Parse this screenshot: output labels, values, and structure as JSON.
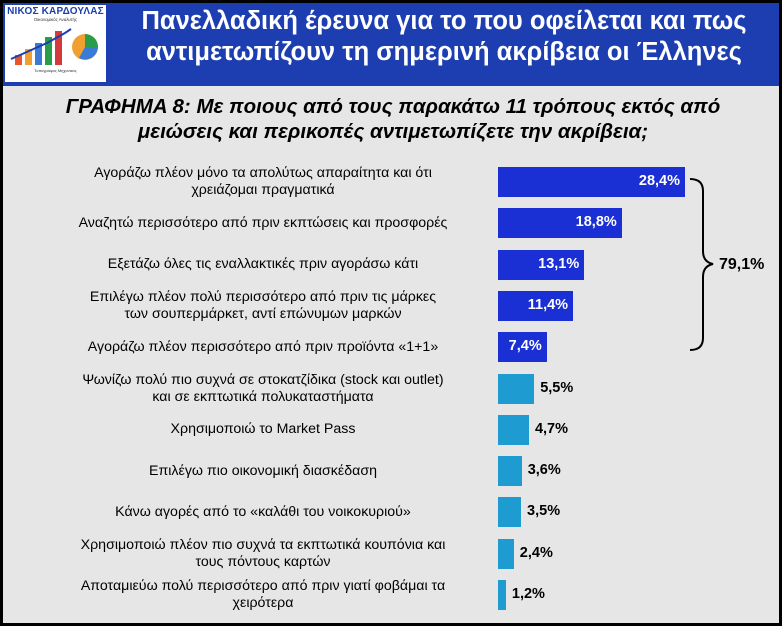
{
  "header": {
    "title_line1": "Πανελλαδική έρευνα για το που οφείλεται και πως",
    "title_line2": "αντιμετωπίζουν τη σημερινή ακρίβεια οι Έλληνες"
  },
  "logo": {
    "name": "ΝΙΚΟΣ ΚΑΡΔΟΥΛΑΣ",
    "sub": "Οικονομικός Αναλυτής",
    "foot": "Τοπογράφος Μηχανικός"
  },
  "colors": {
    "top5": "#1a2fd4",
    "rest": "#1e9bd0",
    "header": "#1c3eb0"
  },
  "chart_data": {
    "type": "bar",
    "orientation": "horizontal",
    "title_line1": "ΓΡΑΦΗΜΑ 8: Με ποιους από τους παρακάτω 11 τρόπους εκτός από",
    "title_line2": "μειώσεις και περικοπές αντιμετωπίζετε την ακρίβεια;",
    "categories": [
      [
        "Αγοράζω πλέον μόνο τα απολύτως απαραίτητα και ότι",
        "χρειάζομαι πραγματικά"
      ],
      [
        "Αναζητώ περισσότερο από πριν εκπτώσεις και προσφορές"
      ],
      [
        "Εξετάζω όλες τις εναλλακτικές πριν αγοράσω κάτι"
      ],
      [
        "Επιλέγω πλέον πολύ περισσότερο από πριν τις μάρκες",
        "των σουπερμάρκετ, αντί επώνυμων μαρκών"
      ],
      [
        "Αγοράζω πλέον περισσότερο από πριν προϊόντα «1+1»"
      ],
      [
        "Ψωνίζω πολύ πιο συχνά σε στοκατζίδικα (stock και outlet)",
        "και σε εκπτωτικά πολυκαταστήματα"
      ],
      [
        "Χρησιμοποιώ το Market Pass"
      ],
      [
        "Επιλέγω πιο οικονομική διασκέδαση"
      ],
      [
        "Κάνω αγορές από το «καλάθι του νοικοκυριού»"
      ],
      [
        "Χρησιμοποιώ πλέον πιο συχνά τα εκπτωτικά κουπόνια και",
        "τους πόντους καρτών"
      ],
      [
        "Αποταμιεύω πολύ περισσότερο από πριν γιατί φοβάμαι τα",
        "χειρότερα"
      ]
    ],
    "values": [
      28.4,
      18.8,
      13.1,
      11.4,
      7.4,
      5.5,
      4.7,
      3.6,
      3.5,
      2.4,
      1.2
    ],
    "value_labels": [
      "28,4%",
      "18,8%",
      "13,1%",
      "11,4%",
      "7,4%",
      "5,5%",
      "4,7%",
      "3,6%",
      "3,5%",
      "2,4%",
      "1,2%"
    ],
    "highlight_count": 5,
    "bracket_total": "79,1%",
    "xlim": [
      0,
      30
    ],
    "grid": false,
    "legend": "none"
  }
}
